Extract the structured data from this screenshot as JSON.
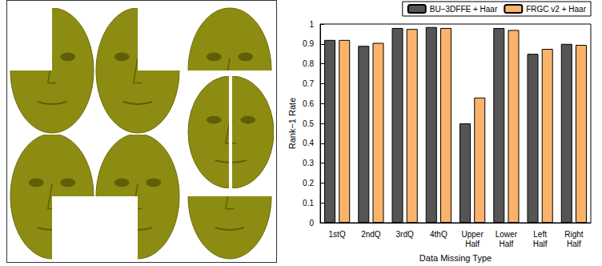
{
  "chart_data": {
    "type": "bar",
    "categories": [
      "1stQ",
      "2ndQ",
      "3rdQ",
      "4thQ",
      "Upper Half",
      "Lower Half",
      "Left Half",
      "Right Half"
    ],
    "series": [
      {
        "name": "BU−3DFFE + Haar",
        "color": "#555555",
        "values": [
          0.92,
          0.89,
          0.98,
          0.985,
          0.5,
          0.98,
          0.85,
          0.9
        ]
      },
      {
        "name": "FRGC v2 + Haar",
        "color": "#fbb36b",
        "values": [
          0.92,
          0.905,
          0.975,
          0.98,
          0.63,
          0.97,
          0.875,
          0.895
        ]
      }
    ],
    "x_label": "Data Missing Type",
    "y_label": "Rank−1 Rate",
    "ylim": [
      0,
      1
    ],
    "yticks": [
      0,
      0.1,
      0.2,
      0.3,
      0.4,
      0.5,
      0.6,
      0.7,
      0.8,
      0.9,
      1
    ],
    "grid": false,
    "legend": "upper right"
  }
}
